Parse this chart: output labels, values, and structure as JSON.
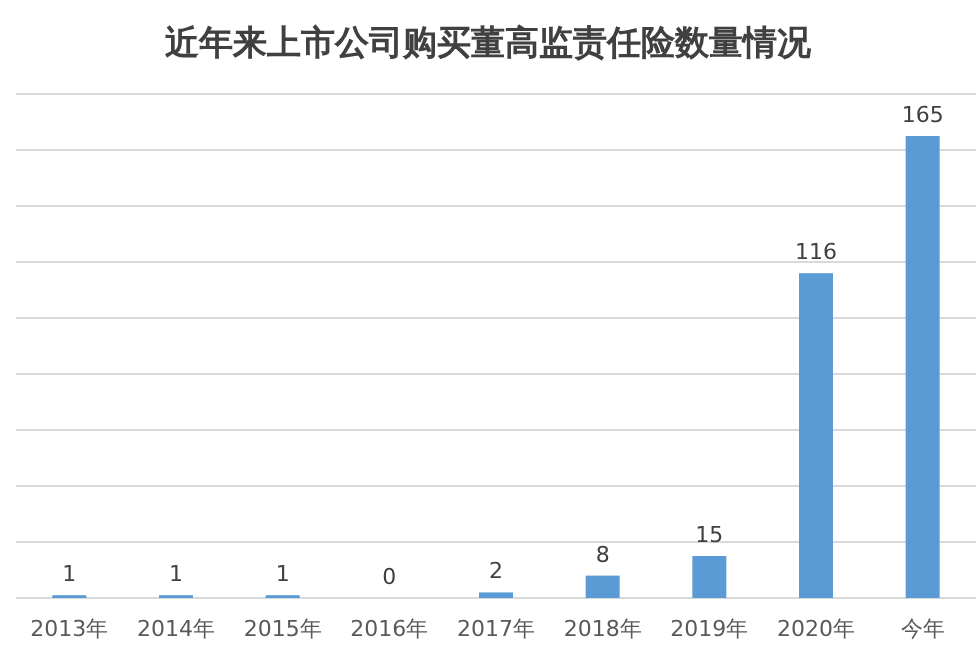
{
  "chart_data": {
    "type": "bar",
    "title": "近年来上市公司购买董高监责任险数量情况",
    "categories": [
      "2013年",
      "2014年",
      "2015年",
      "2016年",
      "2017年",
      "2018年",
      "2019年",
      "2020年",
      "今年"
    ],
    "values": [
      1,
      1,
      1,
      0,
      2,
      8,
      15,
      116,
      165
    ],
    "color": "#5b9bd5",
    "ylim": [
      0,
      180
    ],
    "yticks": [
      {
        "value": 0,
        "label": null
      },
      {
        "value": 20,
        "label": null
      },
      {
        "value": 40,
        "label": null
      },
      {
        "value": 60,
        "label": null
      },
      {
        "value": 80,
        "label": null
      },
      {
        "value": 100,
        "label": null
      },
      {
        "value": 120,
        "label": null
      },
      {
        "value": 140,
        "label": null
      },
      {
        "value": 160,
        "label": null
      },
      {
        "value": 180,
        "label": null
      }
    ],
    "tick_labels": "x",
    "grid": "y",
    "data_labels": true
  }
}
